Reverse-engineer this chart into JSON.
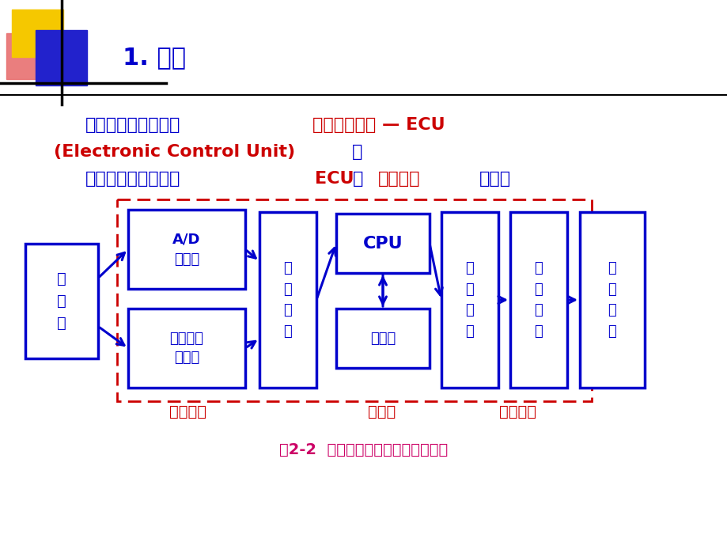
{
  "bg_color": "#ffffff",
  "title_text": "1. 硬件",
  "title_color": "#0000cc",
  "caption": "图2-2  汽车电子控制系统的基本组成",
  "caption_color": "#cc0066",
  "blue": "#0000cc",
  "red": "#cc0000",
  "box_color": "#0000cc",
  "dashed_color": "#cc0000",
  "sensor_label": "传\n感\n器",
  "ad_label": "A/D\n转换器",
  "di_label": "数字输入\n存储器",
  "inp_label": "输\n入\n端\n口",
  "cpu_label": "CPU",
  "mem_label": "存储器",
  "outp_label": "输\n出\n端\n口",
  "drv_label": "驱\n动\n电\n路",
  "exec_label": "执\n行\n机\n构",
  "label_input": "输入接口",
  "label_cpu_text": "计算机",
  "label_output": "输出接口",
  "line1_zh": "汽车计算机系统称为",
  "line1_red": "电子控制单元 — ECU",
  "line2_red": "(Electronic Control Unit)",
  "line2_zh": "。",
  "line3_zh1": "控制系统由传感器、",
  "line3_red1": "ECU",
  "line3_zh2": "和",
  "line3_red2": "执行机构",
  "line3_zh3": "组成。"
}
